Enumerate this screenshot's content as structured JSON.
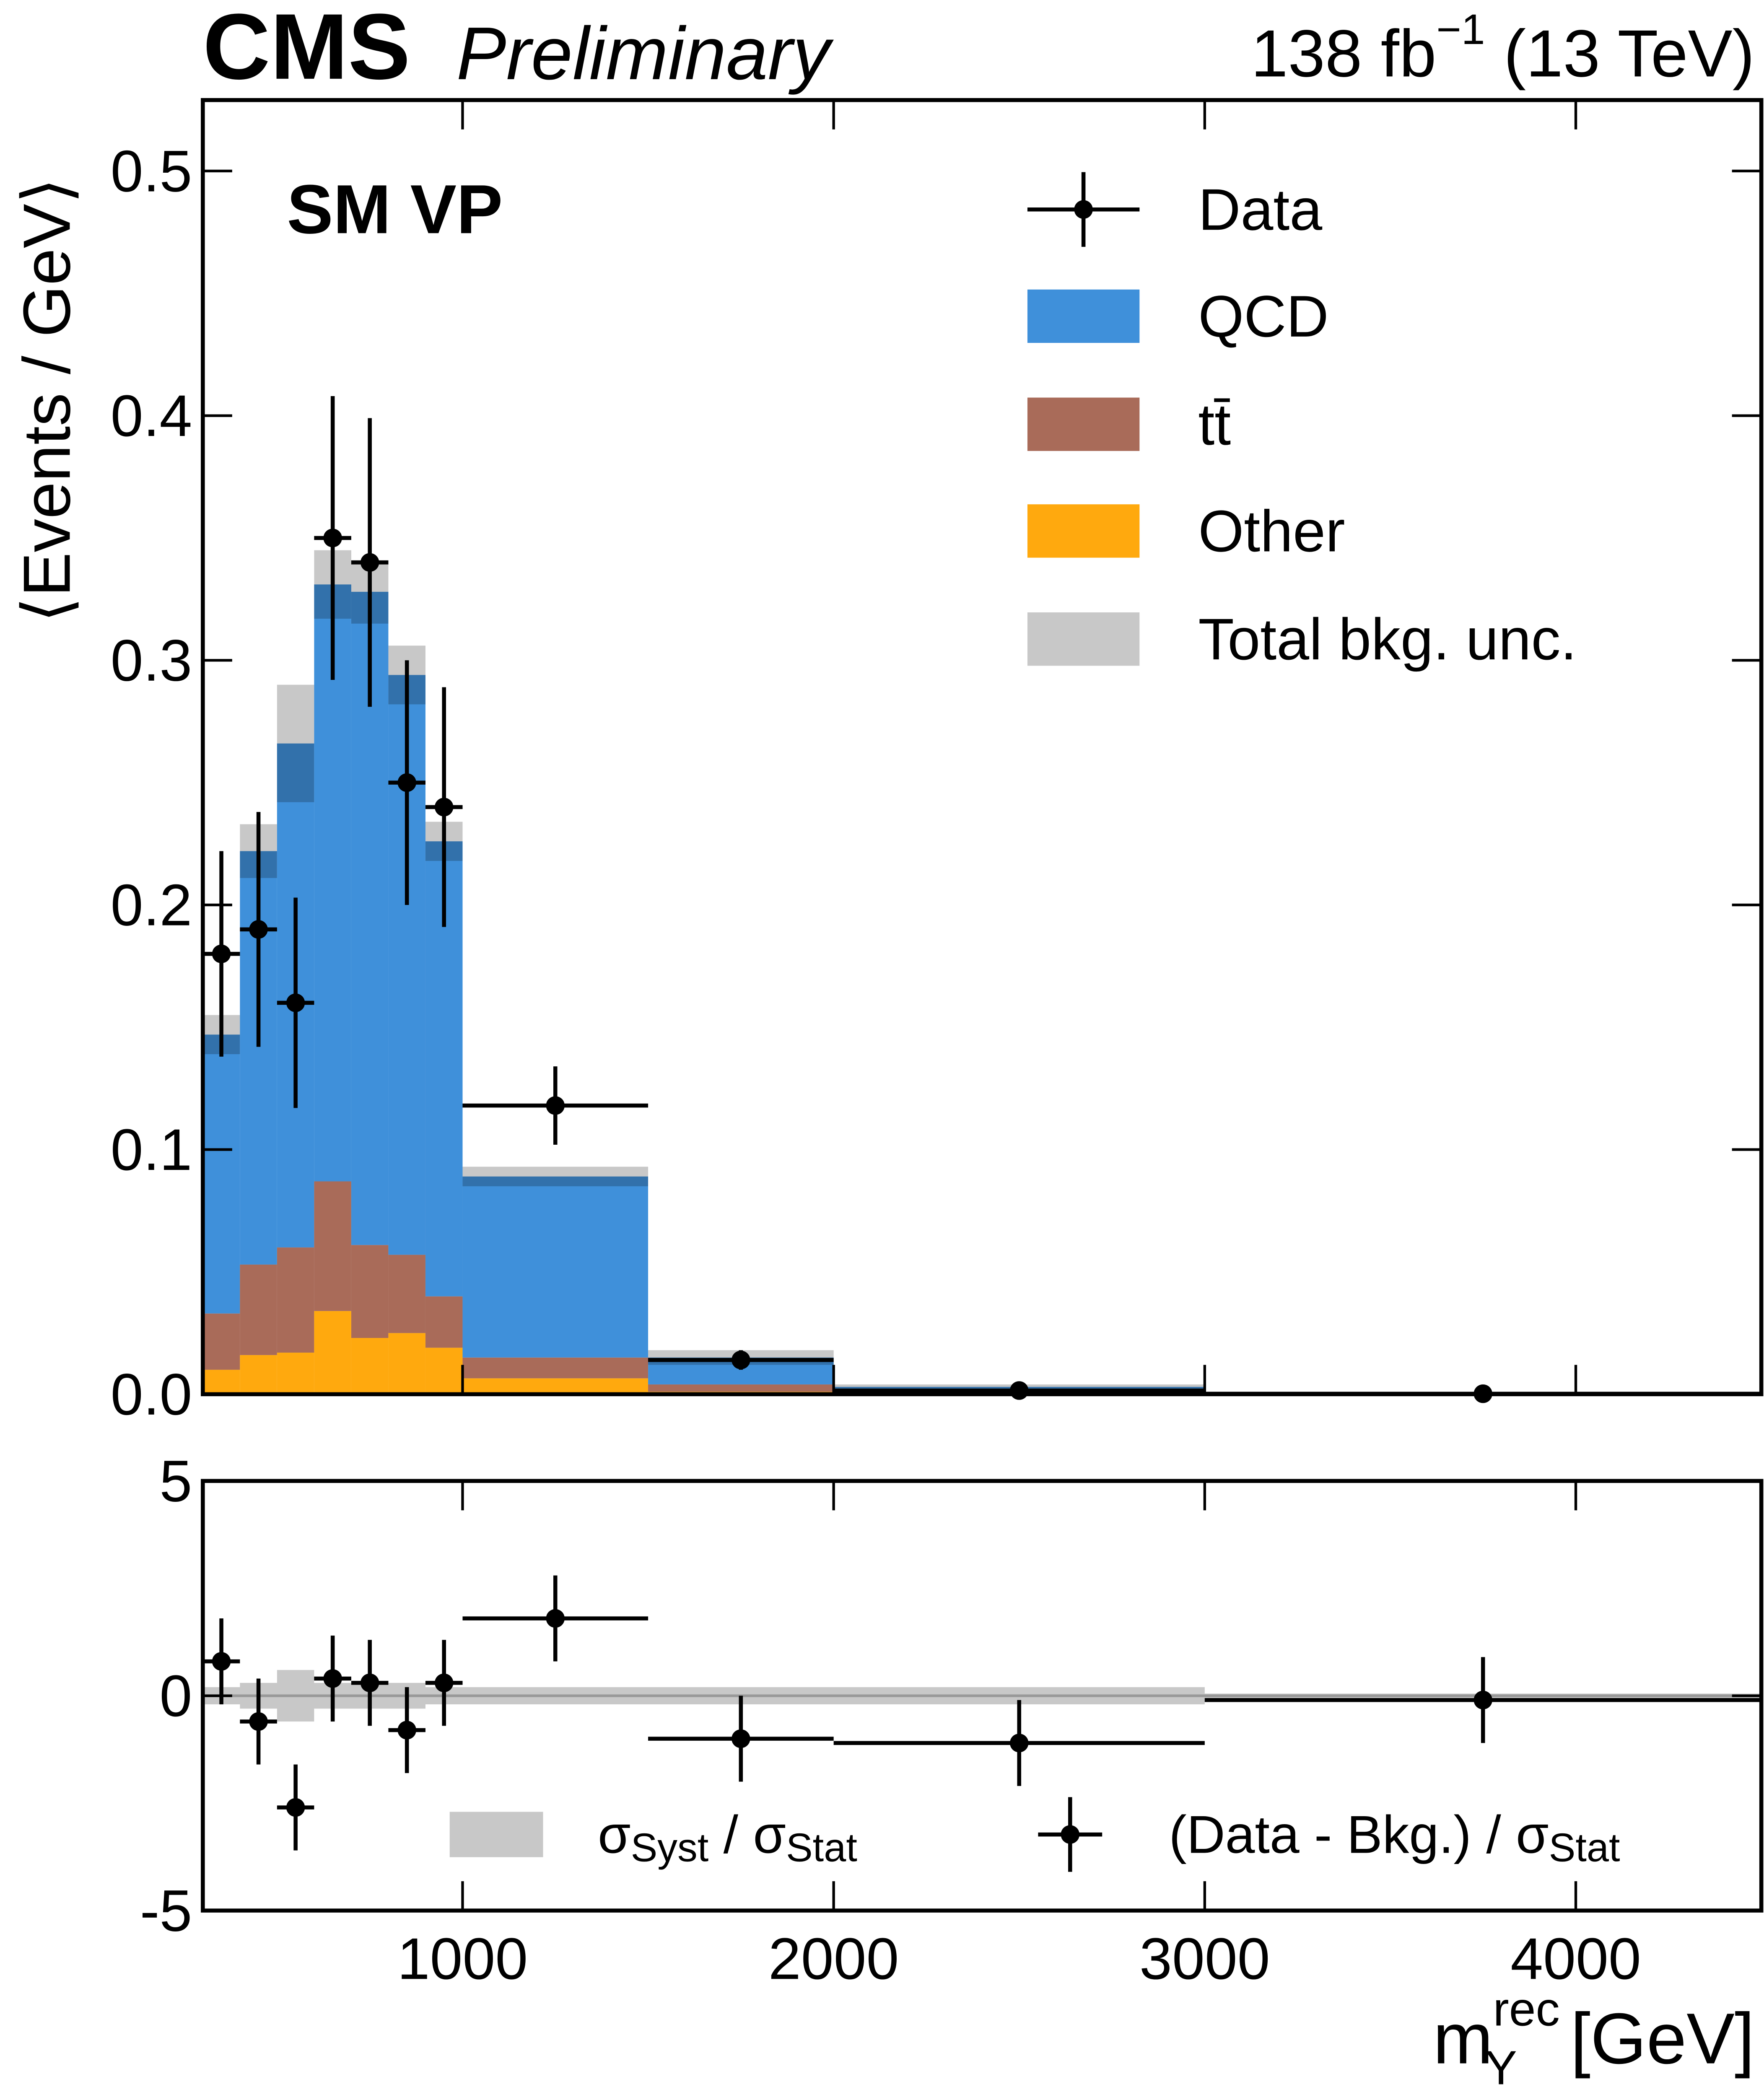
{
  "chart_data": [
    {
      "type": "histogram",
      "experiment": "CMS",
      "status": "Preliminary",
      "lumi": {
        "text": "138 fb",
        "sup": "−1",
        "energy": "(13 TeV)"
      },
      "region": "SM VP",
      "ylabel": "⟨Events / GeV⟩",
      "bins": [
        300,
        400,
        500,
        600,
        700,
        800,
        900,
        1000,
        1500,
        2000,
        3000,
        4500
      ],
      "xlim": [
        300,
        4500
      ],
      "ylim": [
        0,
        0.529
      ],
      "yticks": [
        {
          "value": 0,
          "label": "0.0"
        },
        0.1,
        0.2,
        0.3,
        0.4,
        0.5
      ],
      "series": [
        {
          "name": "QCD",
          "color": "#3f90da",
          "values": [
            0.114,
            0.169,
            0.206,
            0.244,
            0.267,
            0.237,
            0.186,
            0.074,
            0.011,
            0.0023,
            0.0003
          ]
        },
        {
          "name": "tt̄",
          "color": "#a96b59",
          "values": [
            0.023,
            0.037,
            0.043,
            0.053,
            0.038,
            0.032,
            0.021,
            0.0085,
            0.003,
            0.0005,
            5e-05
          ]
        },
        {
          "name": "Other",
          "color": "#ffa90e",
          "values": [
            0.01,
            0.016,
            0.017,
            0.034,
            0.023,
            0.025,
            0.019,
            0.0065,
            0.001,
            0.0002,
            3e-05
          ]
        }
      ],
      "uncertainty": {
        "name": "Total bkg. unc.",
        "color": "#c8c8c8",
        "values": [
          0.008,
          0.011,
          0.024,
          0.014,
          0.013,
          0.012,
          0.008,
          0.004,
          0.003,
          0.001,
          0.0003
        ]
      },
      "data": {
        "name": "Data",
        "color": "#000000",
        "x": [
          350,
          450,
          550,
          650,
          750,
          850,
          950,
          1250,
          1750,
          2500,
          3750
        ],
        "values": [
          0.18,
          0.19,
          0.16,
          0.35,
          0.34,
          0.25,
          0.24,
          0.118,
          0.014,
          0.0015,
          0.0002
        ],
        "errors": [
          0.042,
          0.048,
          0.043,
          0.058,
          0.059,
          0.05,
          0.049,
          0.016,
          0.004,
          0.001,
          0.0003
        ]
      }
    },
    {
      "type": "pull",
      "xlabel": {
        "base": "m",
        "sup": "rec",
        "sub": "Y",
        "unit": "[GeV]"
      },
      "bins": [
        300,
        400,
        500,
        600,
        700,
        800,
        900,
        1000,
        1500,
        2000,
        3000,
        4500
      ],
      "xlim": [
        300,
        4500
      ],
      "xticks": [
        1000,
        2000,
        3000,
        4000
      ],
      "ylim": [
        -5,
        5
      ],
      "yticks": [
        -5,
        0,
        5
      ],
      "band": {
        "name": [
          "σ",
          "Syst",
          " / σ",
          "Stat"
        ],
        "color": "#c8c8c8",
        "values": [
          0.2,
          0.3,
          0.6,
          0.3,
          0.3,
          0.3,
          0.2,
          0.2,
          0.2,
          0.2,
          0.05
        ]
      },
      "data": {
        "name": [
          "(Data - Bkg.) / σ",
          "Stat"
        ],
        "color": "#000000",
        "x": [
          350,
          450,
          550,
          650,
          750,
          850,
          950,
          1250,
          1750,
          2500,
          3750
        ],
        "values": [
          0.8,
          -0.6,
          -2.6,
          0.4,
          0.3,
          -0.8,
          0.3,
          1.8,
          -1.0,
          -1.1,
          -0.1
        ],
        "errors": [
          1,
          1,
          1,
          1,
          1,
          1,
          1,
          1,
          1,
          1,
          1
        ]
      }
    }
  ]
}
